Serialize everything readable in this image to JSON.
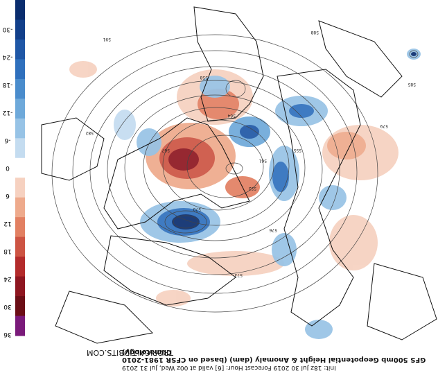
{
  "colorbar": {
    "ticks": [
      "-30",
      "-24",
      "-18",
      "-12",
      "-6",
      "0",
      "6",
      "12",
      "18",
      "24",
      "30",
      "36"
    ],
    "colors": [
      "#0a2d6e",
      "#123f8a",
      "#1f57a6",
      "#2f70bd",
      "#4a8ccc",
      "#6ea9da",
      "#97c3e6",
      "#c4dcf0",
      "#ffffff",
      "#f6d1c0",
      "#eeaa8c",
      "#e28062",
      "#cd5443",
      "#b32b2b",
      "#8e1620",
      "#6b0e16",
      "#7a1a7a"
    ]
  },
  "watermark": "TROPICALTIDBITS.COM",
  "caption": {
    "line1": "Init: 18z Jul 30 2019   Forecast Hour: [6]   valid at 00z Wed, Jul 31 2019",
    "line2": "GFS 500mb Geopotential Height & Anomaly (dam) (based on CFSR 1981-2010 Climatology)"
  },
  "map": {
    "contour_labels": [
      "591",
      "588",
      "585",
      "582",
      "579",
      "576",
      "573",
      "570",
      "567",
      "564",
      "561",
      "558",
      "555",
      "552"
    ],
    "colors": {
      "neg_strong": "#1f57a6",
      "neg": "#6ea9da",
      "neg_light": "#c4dcf0",
      "pos_strong": "#b32b2b",
      "pos": "#e28062",
      "pos_light": "#f6d1c0",
      "land": "#111111"
    }
  }
}
